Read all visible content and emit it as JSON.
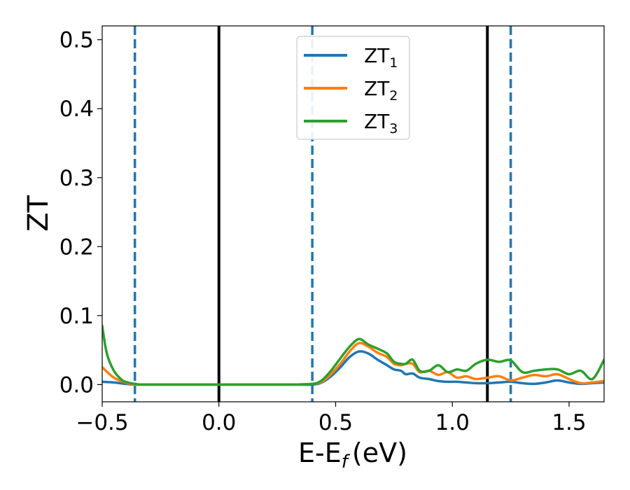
{
  "chart_data": {
    "type": "line",
    "title": "",
    "xlabel": "E-E",
    "xlabel_sub": "f",
    "xlabel_unit": "(eV)",
    "ylabel": "ZT",
    "xlim": [
      -0.5,
      1.65
    ],
    "ylim": [
      -0.025,
      0.52
    ],
    "grid": false,
    "legend_position": "top-center",
    "xticks": [
      {
        "value": -0.5,
        "label": "−0.5"
      },
      {
        "value": 0.0,
        "label": "0.0"
      },
      {
        "value": 0.5,
        "label": "0.5"
      },
      {
        "value": 1.0,
        "label": "1.0"
      },
      {
        "value": 1.5,
        "label": "1.5"
      }
    ],
    "yticks": [
      {
        "value": 0.0,
        "label": "0.0"
      },
      {
        "value": 0.1,
        "label": "0.1"
      },
      {
        "value": 0.2,
        "label": "0.2"
      },
      {
        "value": 0.3,
        "label": "0.3"
      },
      {
        "value": 0.4,
        "label": "0.4"
      },
      {
        "value": 0.5,
        "label": "0.5"
      }
    ],
    "vlines": [
      {
        "x": -0.36,
        "style": "dashed",
        "color": "#1f77b4"
      },
      {
        "x": 0.0,
        "style": "solid",
        "color": "#000000"
      },
      {
        "x": 0.4,
        "style": "dashed",
        "color": "#1f77b4"
      },
      {
        "x": 1.15,
        "style": "solid",
        "color": "#000000"
      },
      {
        "x": 1.25,
        "style": "dashed",
        "color": "#1f77b4"
      }
    ],
    "series": [
      {
        "name": "ZT",
        "name_sub": "1",
        "color": "#1f77b4",
        "x": [
          -0.5,
          -0.45,
          -0.4,
          -0.36,
          -0.3,
          0.0,
          0.3,
          0.4,
          0.44,
          0.48,
          0.52,
          0.56,
          0.6,
          0.64,
          0.68,
          0.72,
          0.75,
          0.78,
          0.8,
          0.83,
          0.86,
          0.9,
          0.94,
          0.98,
          1.02,
          1.06,
          1.1,
          1.15,
          1.2,
          1.25,
          1.3,
          1.35,
          1.4,
          1.45,
          1.5,
          1.55,
          1.6,
          1.65
        ],
        "y": [
          0.004,
          0.003,
          0.001,
          0.0,
          0.0,
          0.0,
          0.0,
          0.0,
          0.003,
          0.012,
          0.025,
          0.04,
          0.048,
          0.045,
          0.036,
          0.028,
          0.022,
          0.02,
          0.015,
          0.016,
          0.01,
          0.008,
          0.005,
          0.004,
          0.004,
          0.003,
          0.002,
          0.002,
          0.003,
          0.004,
          0.002,
          0.001,
          0.003,
          0.006,
          0.003,
          0.001,
          0.002,
          0.003
        ]
      },
      {
        "name": "ZT",
        "name_sub": "2",
        "color": "#ff7f0e",
        "x": [
          -0.5,
          -0.45,
          -0.4,
          -0.36,
          -0.3,
          0.0,
          0.3,
          0.4,
          0.44,
          0.48,
          0.52,
          0.56,
          0.6,
          0.64,
          0.68,
          0.72,
          0.75,
          0.78,
          0.8,
          0.83,
          0.86,
          0.9,
          0.94,
          0.98,
          1.02,
          1.06,
          1.1,
          1.15,
          1.2,
          1.25,
          1.3,
          1.35,
          1.4,
          1.45,
          1.5,
          1.55,
          1.6,
          1.65
        ],
        "y": [
          0.025,
          0.01,
          0.003,
          0.0,
          0.0,
          0.0,
          0.0,
          0.001,
          0.004,
          0.015,
          0.03,
          0.048,
          0.06,
          0.055,
          0.046,
          0.04,
          0.03,
          0.028,
          0.03,
          0.03,
          0.018,
          0.02,
          0.014,
          0.018,
          0.01,
          0.012,
          0.008,
          0.01,
          0.012,
          0.006,
          0.01,
          0.014,
          0.012,
          0.015,
          0.008,
          0.002,
          0.003,
          0.005
        ]
      },
      {
        "name": "ZT",
        "name_sub": "3",
        "color": "#2ca02c",
        "x": [
          -0.5,
          -0.48,
          -0.45,
          -0.42,
          -0.4,
          -0.36,
          -0.3,
          0.0,
          0.3,
          0.4,
          0.44,
          0.48,
          0.52,
          0.56,
          0.6,
          0.64,
          0.68,
          0.72,
          0.75,
          0.78,
          0.8,
          0.83,
          0.86,
          0.9,
          0.94,
          0.98,
          1.02,
          1.06,
          1.1,
          1.15,
          1.2,
          1.25,
          1.3,
          1.35,
          1.4,
          1.45,
          1.5,
          1.55,
          1.6,
          1.65
        ],
        "y": [
          0.085,
          0.045,
          0.02,
          0.008,
          0.004,
          0.001,
          0.0,
          0.0,
          0.0,
          0.001,
          0.006,
          0.02,
          0.038,
          0.055,
          0.066,
          0.058,
          0.052,
          0.045,
          0.033,
          0.03,
          0.03,
          0.036,
          0.02,
          0.02,
          0.028,
          0.018,
          0.022,
          0.02,
          0.03,
          0.036,
          0.033,
          0.035,
          0.018,
          0.02,
          0.022,
          0.022,
          0.015,
          0.02,
          0.008,
          0.036
        ]
      }
    ]
  }
}
